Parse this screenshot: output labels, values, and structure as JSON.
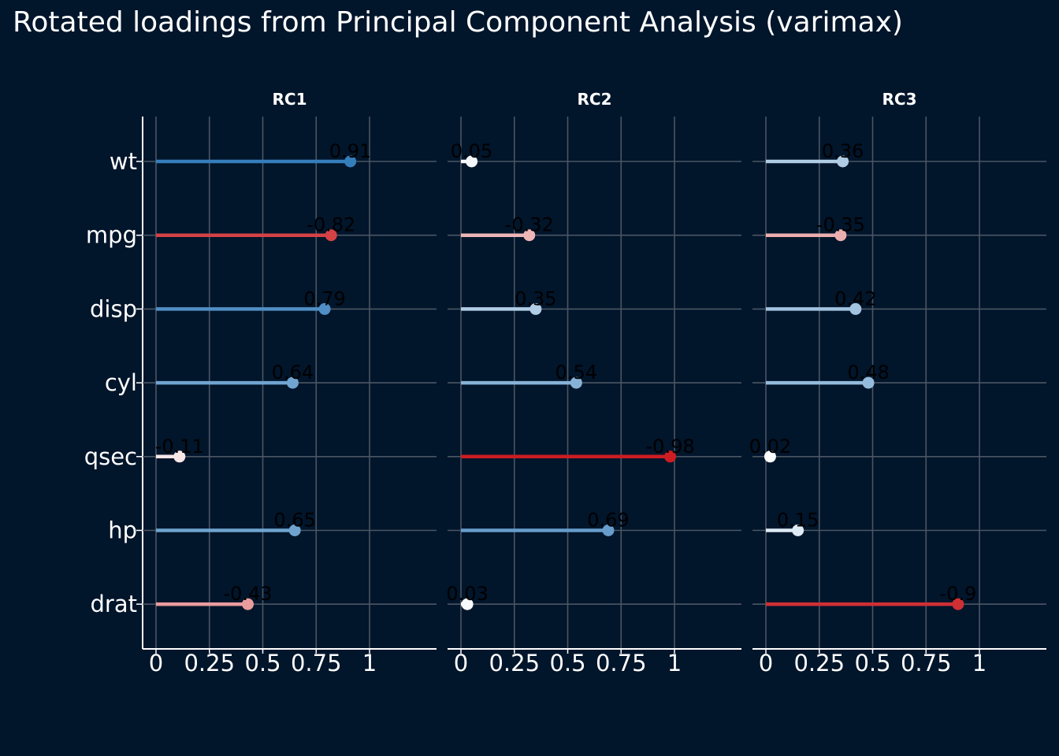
{
  "title": "Rotated loadings from Principal Component Analysis (varimax)",
  "chart_data": {
    "type": "lollipop",
    "facets": [
      "RC1",
      "RC2",
      "RC3"
    ],
    "variables": [
      "wt",
      "mpg",
      "disp",
      "cyl",
      "qsec",
      "hp",
      "drat"
    ],
    "x_axis": {
      "ticks": [
        0,
        0.25,
        0.5,
        0.75,
        1
      ],
      "tick_labels": [
        "0",
        "0.25",
        "0.5",
        "0.75",
        "1"
      ],
      "range": [
        -0.06,
        1.25
      ],
      "measure": "absolute loading"
    },
    "loadings": {
      "RC1": [
        0.91,
        -0.82,
        0.79,
        0.64,
        -0.11,
        0.65,
        -0.43
      ],
      "RC2": [
        0.05,
        -0.32,
        0.35,
        0.54,
        -0.98,
        0.69,
        0.03
      ],
      "RC3": [
        0.36,
        -0.35,
        0.42,
        0.48,
        0.02,
        0.15,
        -0.9
      ]
    },
    "labels": {
      "RC1": [
        "0.91",
        "-0.82",
        "0.79",
        "0.64",
        "-0.11",
        "0.65",
        "-0.43"
      ],
      "RC2": [
        "0.05",
        "-0.32",
        "0.35",
        "0.54",
        "-0.98",
        "0.69",
        "0.03"
      ],
      "RC3": [
        "0.36",
        "-0.35",
        "0.42",
        "0.48",
        "0.02",
        "0.15",
        "-0.9"
      ]
    },
    "color_scale": "diverging red (negative) - white (zero) - blue (positive)",
    "grid": true,
    "legend": "none"
  }
}
